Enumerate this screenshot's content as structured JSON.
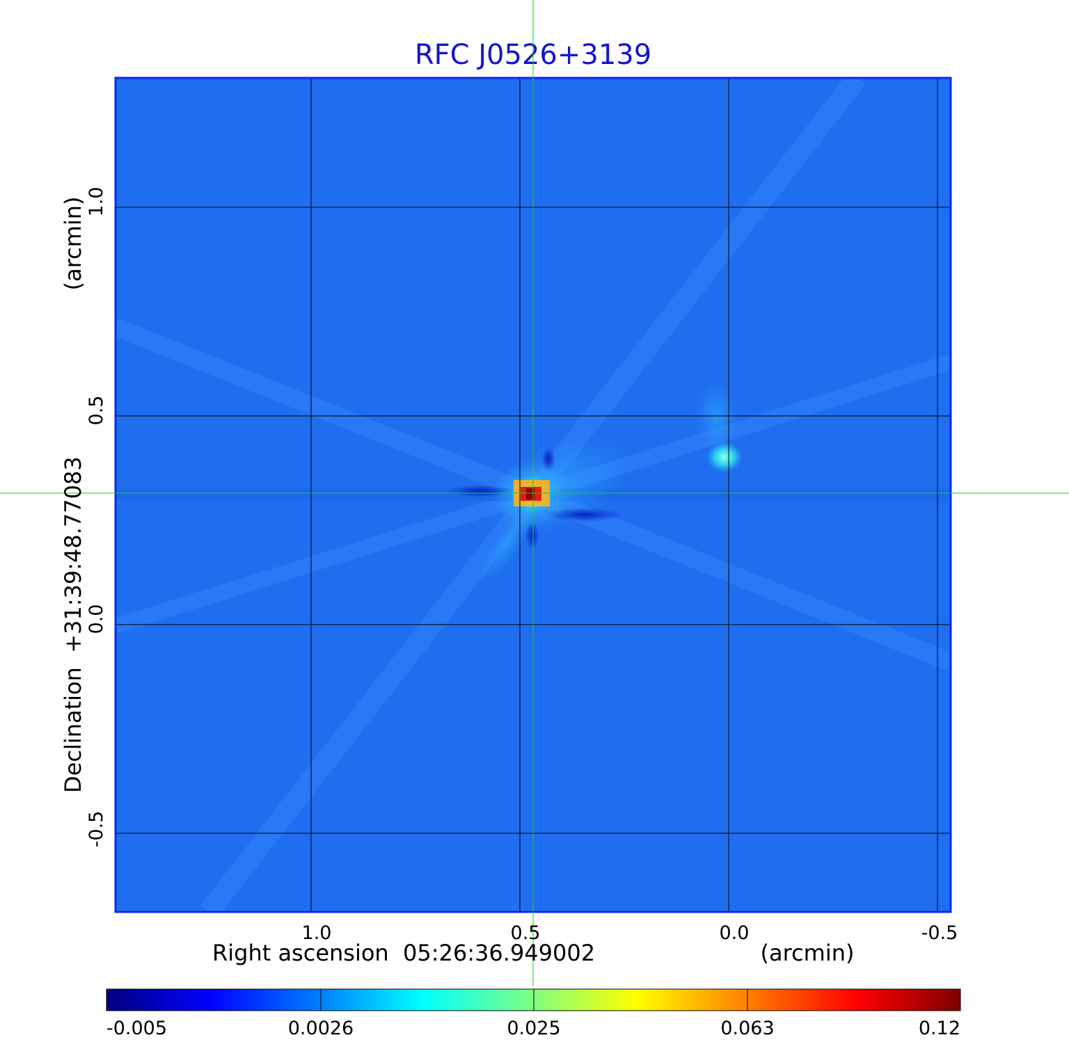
{
  "title": "RFC J0526+3139",
  "colors": {
    "title": "#1414d2",
    "background_field": "#1f6ef0",
    "frame": "#0a2ae6",
    "grid": "#000000",
    "crosshair": "#00e000"
  },
  "x_axis": {
    "label": "Right ascension  05:26:36.949002",
    "units": "(arcmin)",
    "ticks": [
      "1.0",
      "0.5",
      "0.0",
      "-0.5"
    ]
  },
  "y_axis": {
    "label": "Declination  +31:39:48.77083",
    "units": "(arcmin)",
    "ticks": [
      "1.0",
      "0.5",
      "0.0",
      "-0.5"
    ]
  },
  "colorbar": {
    "ticks": [
      "-0.005",
      "0.0026",
      "0.025",
      "0.063",
      "0.12"
    ],
    "colormap": [
      "#00007f",
      "#0000ff",
      "#007fff",
      "#00ffff",
      "#7fff7f",
      "#ffff00",
      "#ff7f00",
      "#ff0000",
      "#7f0000"
    ]
  }
}
